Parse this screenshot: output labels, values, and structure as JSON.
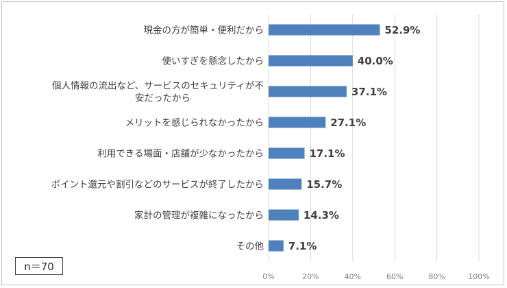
{
  "chart_data": {
    "type": "bar",
    "orientation": "horizontal",
    "categories": [
      [
        "現金の方が簡単・便利だから"
      ],
      [
        "使いすぎを懸念したから"
      ],
      [
        "個人情報の流出など、サービスのセキュリティが不",
        "安だったから"
      ],
      [
        "メリットを感じられなかったから"
      ],
      [
        "利用できる場面・店舗が少なかったから"
      ],
      [
        "ポイント還元や割引などのサービスが終了したから"
      ],
      [
        "家計の管理が複雑になったから"
      ],
      [
        "その他"
      ]
    ],
    "values": [
      52.9,
      40.0,
      37.1,
      27.1,
      17.1,
      15.7,
      14.3,
      7.1
    ],
    "value_labels": [
      "52.9%",
      "40.0%",
      "37.1%",
      "27.1%",
      "17.1%",
      "15.7%",
      "14.3%",
      "7.1%"
    ],
    "xlim": [
      0,
      100
    ],
    "xticks": [
      0,
      20,
      40,
      60,
      80,
      100
    ],
    "xtick_labels": [
      "0%",
      "20%",
      "40%",
      "60%",
      "80%",
      "100%"
    ],
    "grid": true,
    "bar_color": "#4f81bd",
    "grid_color": "#d9d9d9"
  },
  "sample_size": "n＝70"
}
